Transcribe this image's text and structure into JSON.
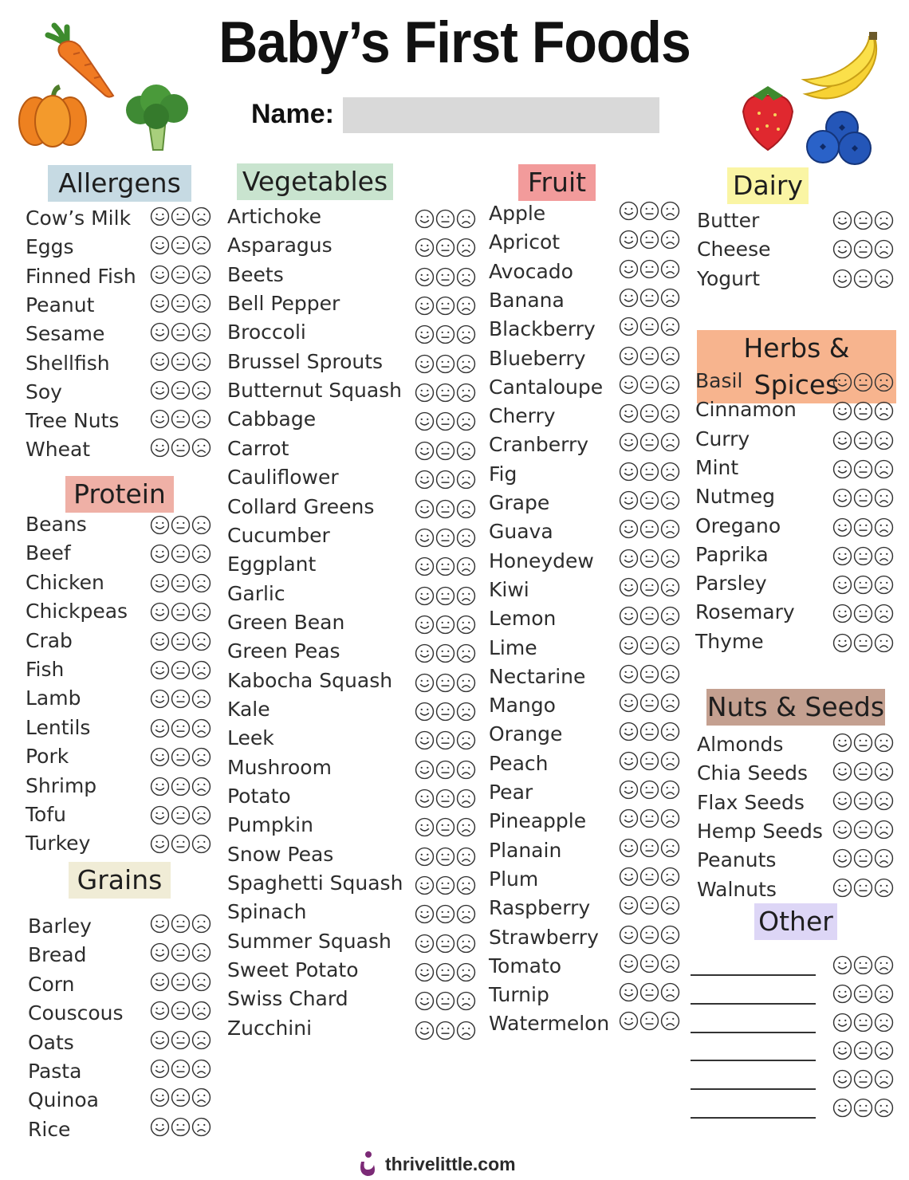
{
  "title": "Baby’s First Foods",
  "name_label": "Name:",
  "name_value": "",
  "icons": {
    "rating_set": [
      "happy-face-icon",
      "neutral-face-icon",
      "sad-face-icon"
    ],
    "illustrations": [
      "carrot-icon",
      "pumpkin-icon",
      "broccoli-icon",
      "banana-icon",
      "strawberry-icon",
      "blueberries-icon"
    ],
    "footer_logo": "thrivelittle-logo-icon"
  },
  "colors": {
    "allergens": "#c6dae3",
    "vegetables": "#c9e4cf",
    "fruit": "#f29b9b",
    "dairy": "#faf5a4",
    "herbs_spices": "#f7b48e",
    "protein": "#efb0a6",
    "nuts_seeds": "#c4a090",
    "grains": "#f0ecd6",
    "other": "#ddd6f6",
    "name_field": "#d9d9d9",
    "logo": "#7b2a76"
  },
  "sections": {
    "allergens": {
      "title": "Allergens",
      "items": [
        "Cow’s Milk",
        "Eggs",
        "Finned Fish",
        "Peanut",
        "Sesame",
        "Shellfish",
        "Soy",
        "Tree Nuts",
        "Wheat"
      ]
    },
    "protein": {
      "title": "Protein",
      "items": [
        "Beans",
        "Beef",
        "Chicken",
        "Chickpeas",
        "Crab",
        "Fish",
        "Lamb",
        "Lentils",
        "Pork",
        "Shrimp",
        "Tofu",
        "Turkey"
      ]
    },
    "grains": {
      "title": "Grains",
      "items": [
        "Barley",
        "Bread",
        "Corn",
        "Couscous",
        "Oats",
        "Pasta",
        "Quinoa",
        "Rice"
      ]
    },
    "vegetables": {
      "title": "Vegetables",
      "items": [
        "Artichoke",
        "Asparagus",
        "Beets",
        "Bell Pepper",
        "Broccoli",
        "Brussel Sprouts",
        "Butternut Squash",
        "Cabbage",
        "Carrot",
        "Cauliflower",
        "Collard Greens",
        "Cucumber",
        "Eggplant",
        "Garlic",
        "Green Bean",
        "Green Peas",
        "Kabocha Squash",
        "Kale",
        "Leek",
        "Mushroom",
        "Potato",
        "Pumpkin",
        "Snow Peas",
        "Spaghetti Squash",
        "Spinach",
        "Summer Squash",
        "Sweet Potato",
        "Swiss Chard",
        "Zucchini"
      ]
    },
    "fruit": {
      "title": "Fruit",
      "items": [
        "Apple",
        "Apricot",
        "Avocado",
        "Banana",
        "Blackberry",
        "Blueberry",
        "Cantaloupe",
        "Cherry",
        "Cranberry",
        "Fig",
        "Grape",
        "Guava",
        "Honeydew",
        "Kiwi",
        "Lemon",
        "Lime",
        "Nectarine",
        "Mango",
        "Orange",
        "Peach",
        "Pear",
        "Pineapple",
        "Planain",
        "Plum",
        "Raspberry",
        "Strawberry",
        "Tomato",
        "Turnip",
        "Watermelon"
      ]
    },
    "dairy": {
      "title": "Dairy",
      "items": [
        "Butter",
        "Cheese",
        "Yogurt"
      ]
    },
    "herbs_spices": {
      "title": "Herbs & Spices",
      "items": [
        "Basil",
        "Cinnamon",
        "Curry",
        "Mint",
        "Nutmeg",
        "Oregano",
        "Paprika",
        "Parsley",
        "Rosemary",
        "Thyme"
      ]
    },
    "nuts_seeds": {
      "title": "Nuts & Seeds",
      "items": [
        "Almonds",
        "Chia Seeds",
        "Flax Seeds",
        "Hemp Seeds",
        "Peanuts",
        "Walnuts"
      ]
    },
    "other": {
      "title": "Other",
      "blank_count": 6
    }
  },
  "footer": {
    "text": "thrivelittle.com"
  }
}
